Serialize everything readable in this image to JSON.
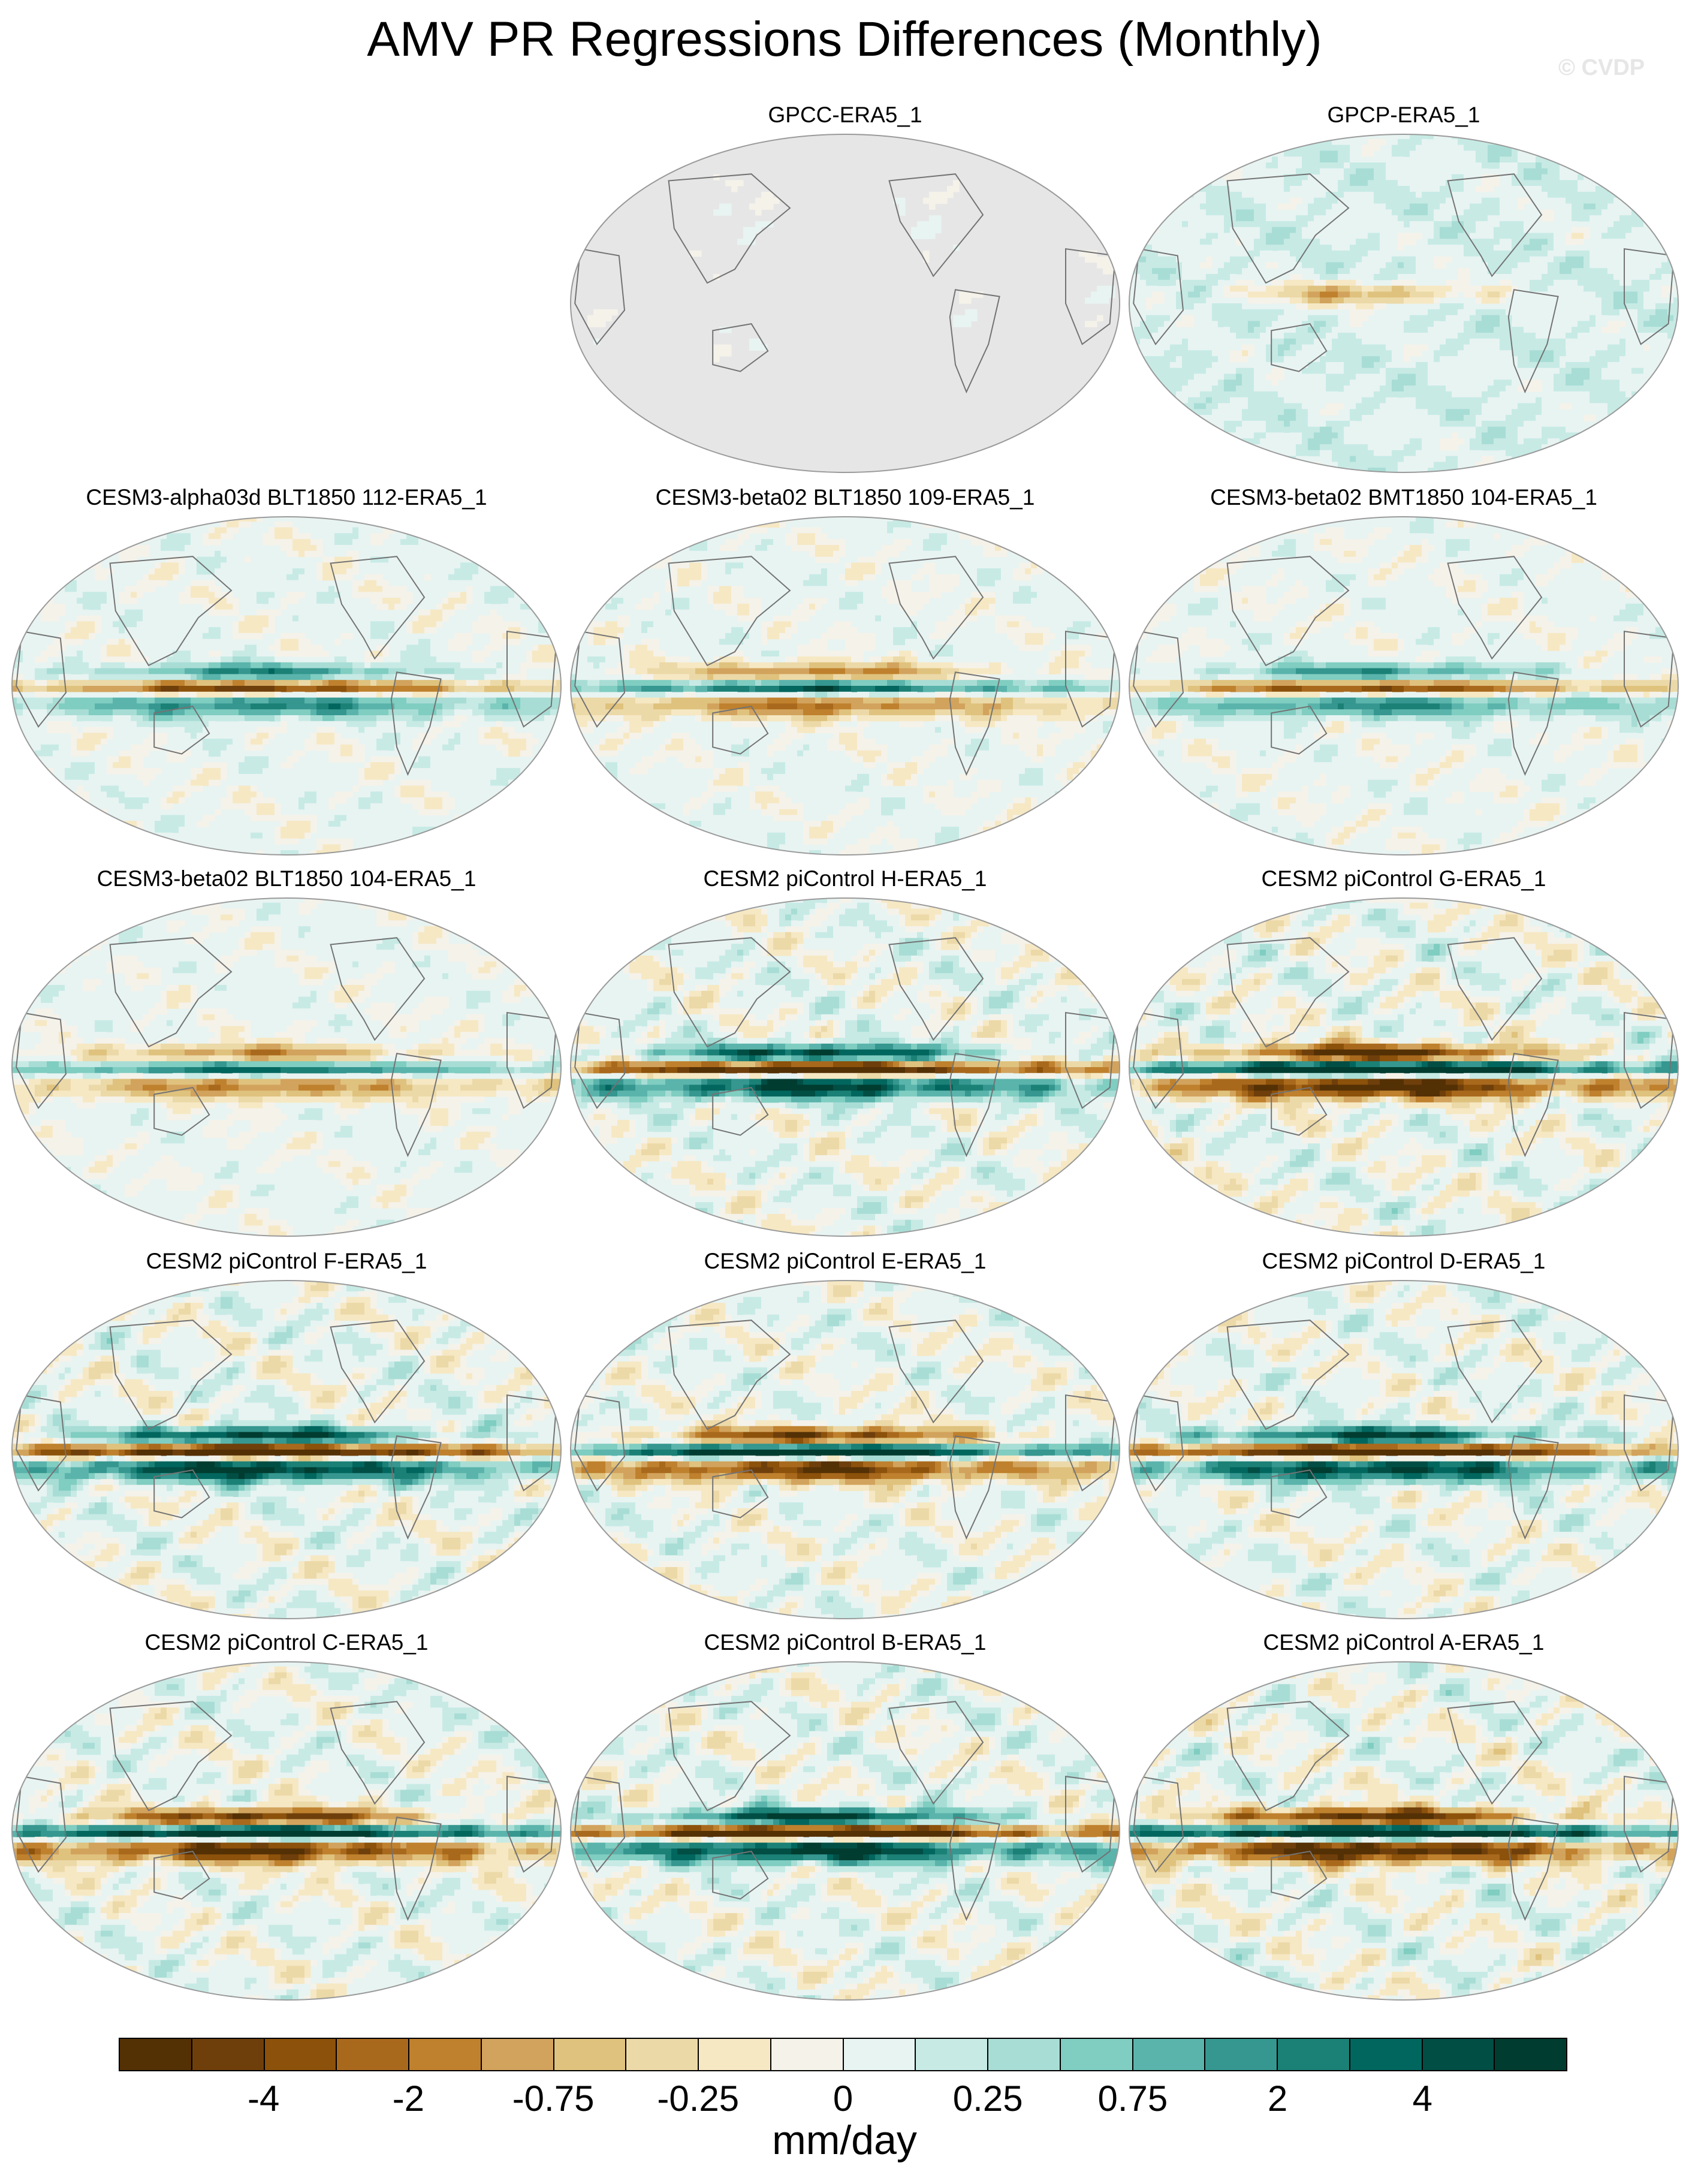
{
  "title": "AMV PR Regressions Differences (Monthly)",
  "watermark": "© CVDP",
  "panels": [
    {
      "label": "GPCC-ERA5_1",
      "pattern": "obs-land",
      "strength": 0.3
    },
    {
      "label": "GPCP-ERA5_1",
      "pattern": "obs-global",
      "strength": 0.6
    },
    {
      "label": "CESM3-alpha03d BLT1850 112-ERA5_1",
      "pattern": "itcz-dipole",
      "strength": 0.75
    },
    {
      "label": "CESM3-beta02 BLT1850 109-ERA5_1",
      "pattern": "itcz-dipole",
      "strength": 0.7
    },
    {
      "label": "CESM3-beta02 BMT1850 104-ERA5_1",
      "pattern": "itcz-dipole",
      "strength": 0.7
    },
    {
      "label": "CESM3-beta02 BLT1850 104-ERA5_1",
      "pattern": "itcz-dipole",
      "strength": 0.65
    },
    {
      "label": "CESM2 piControl H-ERA5_1",
      "pattern": "pacific-band",
      "strength": 0.9
    },
    {
      "label": "CESM2 piControl G-ERA5_1",
      "pattern": "pacific-band",
      "strength": 1.0
    },
    {
      "label": "CESM2 piControl F-ERA5_1",
      "pattern": "pacific-band",
      "strength": 0.95
    },
    {
      "label": "CESM2 piControl E-ERA5_1",
      "pattern": "pacific-band",
      "strength": 0.85
    },
    {
      "label": "CESM2 piControl D-ERA5_1",
      "pattern": "pacific-band",
      "strength": 0.9
    },
    {
      "label": "CESM2 piControl C-ERA5_1",
      "pattern": "pacific-band",
      "strength": 0.9
    },
    {
      "label": "CESM2 piControl B-ERA5_1",
      "pattern": "pacific-band",
      "strength": 0.95
    },
    {
      "label": "CESM2 piControl A-ERA5_1",
      "pattern": "pacific-band",
      "strength": 1.0
    }
  ],
  "colorbar": {
    "colors": [
      "#543005",
      "#6f3f0b",
      "#8c510a",
      "#a9691d",
      "#bf812d",
      "#d2a35d",
      "#dfc27d",
      "#ecd9a8",
      "#f6e8c3",
      "#f5f2ea",
      "#e8f4f2",
      "#c7eae5",
      "#a8ddd5",
      "#80cdc1",
      "#5ab4ac",
      "#35978f",
      "#1b8076",
      "#01665e",
      "#014e45",
      "#003c30"
    ],
    "tick_labels": [
      "-4",
      "-2",
      "-0.75",
      "-0.25",
      "0",
      "0.25",
      "0.75",
      "2",
      "4"
    ],
    "units": "mm/day"
  },
  "missing_value_color": "#e6e6e6",
  "coastline_color": "#737373"
}
